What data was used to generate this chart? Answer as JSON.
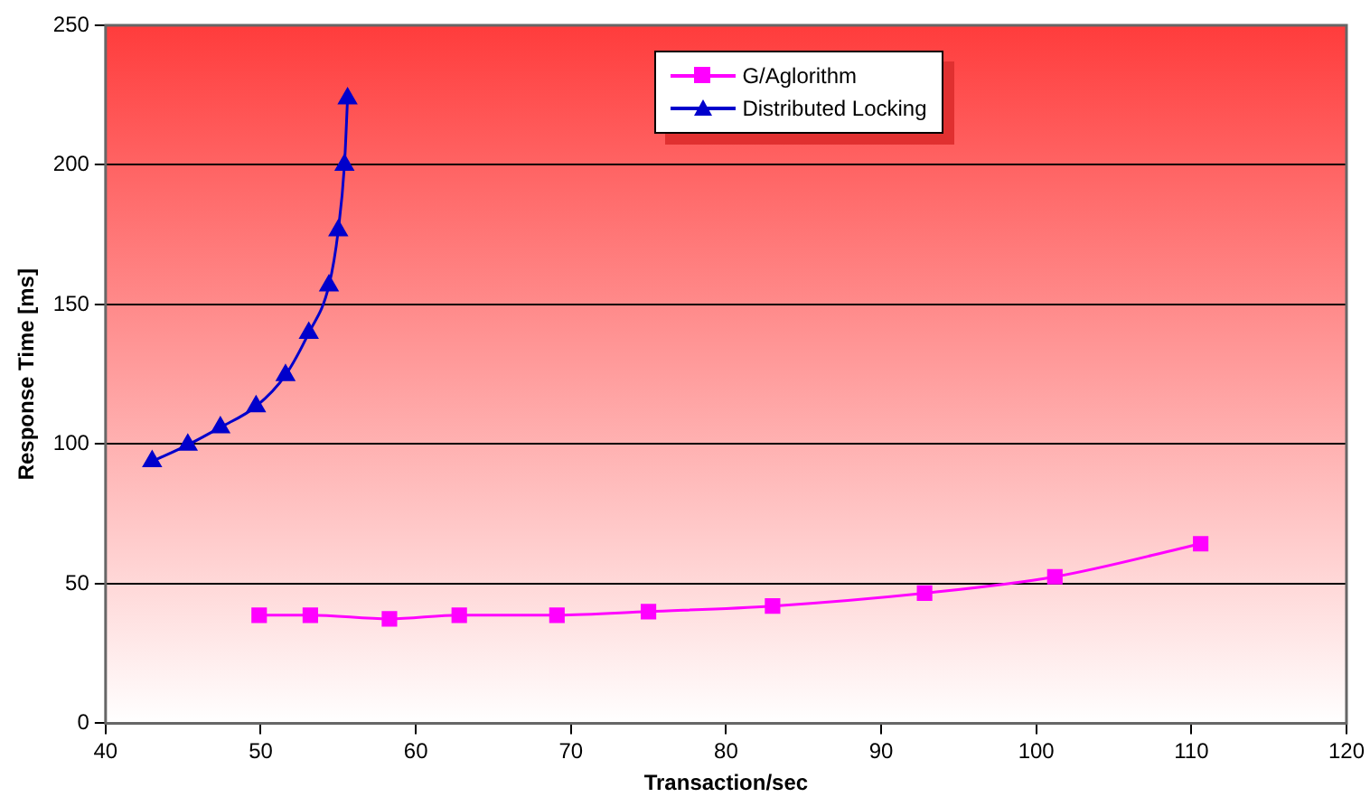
{
  "chart_data": {
    "type": "line",
    "xlabel": "Transaction/sec",
    "ylabel": "Response Time [ms]",
    "xlim": [
      40,
      120
    ],
    "xticks": [
      40,
      50,
      60,
      70,
      80,
      90,
      100,
      110,
      120
    ],
    "ylim": [
      0,
      250
    ],
    "yticks": [
      0,
      50,
      100,
      150,
      200,
      250
    ],
    "grid": "y",
    "legend": "top",
    "series": [
      {
        "name": "G/Aglorithm",
        "color": "#ff00ff",
        "marker": "square",
        "x": [
          49.9,
          53.2,
          58.3,
          62.8,
          69.1,
          75.0,
          83.0,
          92.8,
          101.2,
          110.6
        ],
        "values": [
          38.7,
          38.7,
          37.4,
          38.7,
          38.7,
          40,
          42,
          46.6,
          52.5,
          64.3
        ]
      },
      {
        "name": "Distributed Locking",
        "color": "#0000cc",
        "marker": "triangle",
        "x": [
          43.0,
          45.3,
          47.4,
          49.7,
          51.6,
          53.1,
          54.4,
          55.0,
          55.4,
          55.6
        ],
        "values": [
          93.8,
          99.7,
          106,
          113.5,
          124.7,
          139.8,
          156.8,
          176.5,
          200,
          223.8
        ]
      }
    ]
  }
}
